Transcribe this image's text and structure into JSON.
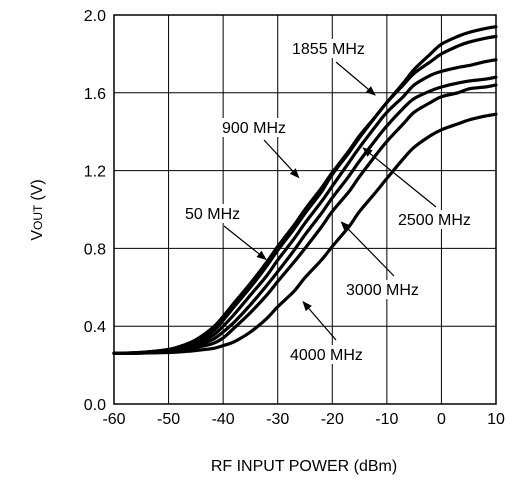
{
  "chart_data": {
    "type": "line",
    "title": "",
    "xlabel": "RF INPUT POWER (dBm)",
    "ylabel_main": "V",
    "ylabel_sub": "OUT",
    "ylabel_unit": "(V)",
    "xlim": [
      -60,
      10
    ],
    "ylim": [
      0,
      2.0
    ],
    "xticks": [
      -60,
      -50,
      -40,
      -30,
      -20,
      -10,
      0,
      10
    ],
    "xtick_labels": [
      "-60",
      "-50",
      "-40",
      "-30",
      "-20",
      "-10",
      "0",
      "10"
    ],
    "yticks": [
      0,
      0.4,
      0.8,
      1.2,
      1.6,
      2.0
    ],
    "ytick_labels": [
      "0.0",
      "0.4",
      "0.8",
      "1.2",
      "1.6",
      "2.0"
    ],
    "grid": true,
    "legend": "none",
    "series": [
      {
        "name": "50 MHz",
        "x": [
          -60,
          -55,
          -50,
          -47,
          -45,
          -42,
          -40,
          -38,
          -35,
          -32,
          -30,
          -27,
          -25,
          -22,
          -20,
          -17,
          -15,
          -12,
          -10,
          -7,
          -5,
          -2,
          0,
          3,
          5,
          8,
          10
        ],
        "y": [
          0.26,
          0.265,
          0.28,
          0.305,
          0.33,
          0.39,
          0.45,
          0.52,
          0.62,
          0.73,
          0.81,
          0.92,
          1.0,
          1.11,
          1.19,
          1.3,
          1.38,
          1.48,
          1.55,
          1.64,
          1.7,
          1.76,
          1.8,
          1.84,
          1.86,
          1.88,
          1.89
        ]
      },
      {
        "name": "900 MHz",
        "x": [
          -60,
          -55,
          -50,
          -47,
          -45,
          -42,
          -40,
          -38,
          -35,
          -32,
          -30,
          -27,
          -25,
          -22,
          -20,
          -17,
          -15,
          -12,
          -10,
          -7,
          -5,
          -2,
          0,
          3,
          5,
          8,
          10
        ],
        "y": [
          0.26,
          0.265,
          0.28,
          0.3,
          0.32,
          0.37,
          0.43,
          0.5,
          0.6,
          0.71,
          0.79,
          0.9,
          0.98,
          1.09,
          1.18,
          1.29,
          1.37,
          1.48,
          1.55,
          1.65,
          1.72,
          1.8,
          1.85,
          1.89,
          1.91,
          1.93,
          1.94
        ]
      },
      {
        "name": "1855 MHz",
        "x": [
          -60,
          -55,
          -50,
          -47,
          -45,
          -42,
          -40,
          -38,
          -35,
          -32,
          -30,
          -27,
          -25,
          -22,
          -20,
          -17,
          -15,
          -12,
          -10,
          -7,
          -5,
          -2,
          0,
          3,
          5,
          8,
          10
        ],
        "y": [
          0.26,
          0.265,
          0.275,
          0.29,
          0.31,
          0.35,
          0.4,
          0.46,
          0.56,
          0.66,
          0.74,
          0.85,
          0.93,
          1.04,
          1.12,
          1.24,
          1.32,
          1.43,
          1.5,
          1.58,
          1.64,
          1.69,
          1.71,
          1.73,
          1.74,
          1.76,
          1.77
        ]
      },
      {
        "name": "2500 MHz",
        "x": [
          -60,
          -55,
          -50,
          -47,
          -45,
          -42,
          -40,
          -38,
          -35,
          -32,
          -30,
          -27,
          -25,
          -22,
          -20,
          -17,
          -15,
          -12,
          -10,
          -7,
          -5,
          -2,
          0,
          3,
          5,
          8,
          10
        ],
        "y": [
          0.26,
          0.262,
          0.27,
          0.285,
          0.3,
          0.33,
          0.37,
          0.42,
          0.51,
          0.61,
          0.68,
          0.79,
          0.87,
          0.98,
          1.06,
          1.17,
          1.25,
          1.36,
          1.43,
          1.52,
          1.57,
          1.61,
          1.63,
          1.65,
          1.66,
          1.67,
          1.68
        ]
      },
      {
        "name": "3000 MHz",
        "x": [
          -60,
          -55,
          -50,
          -47,
          -45,
          -42,
          -40,
          -38,
          -35,
          -32,
          -30,
          -27,
          -25,
          -22,
          -20,
          -17,
          -15,
          -12,
          -10,
          -7,
          -5,
          -2,
          0,
          3,
          5,
          8,
          10
        ],
        "y": [
          0.26,
          0.262,
          0.268,
          0.28,
          0.29,
          0.31,
          0.34,
          0.39,
          0.47,
          0.56,
          0.63,
          0.73,
          0.8,
          0.91,
          0.99,
          1.09,
          1.17,
          1.28,
          1.35,
          1.44,
          1.5,
          1.55,
          1.58,
          1.6,
          1.62,
          1.63,
          1.64
        ]
      },
      {
        "name": "4000 MHz",
        "x": [
          -60,
          -55,
          -50,
          -47,
          -45,
          -42,
          -40,
          -38,
          -35,
          -32,
          -30,
          -27,
          -25,
          -22,
          -20,
          -17,
          -15,
          -12,
          -10,
          -7,
          -5,
          -2,
          0,
          3,
          5,
          8,
          10
        ],
        "y": [
          0.26,
          0.262,
          0.265,
          0.27,
          0.275,
          0.285,
          0.3,
          0.32,
          0.37,
          0.44,
          0.5,
          0.58,
          0.65,
          0.74,
          0.81,
          0.91,
          0.99,
          1.09,
          1.16,
          1.26,
          1.32,
          1.38,
          1.41,
          1.44,
          1.46,
          1.48,
          1.49
        ]
      }
    ],
    "annotations": [
      {
        "text": "1855 MHz",
        "point": [
          -12,
          1.585
        ]
      },
      {
        "text": "900 MHz",
        "point": [
          -26,
          1.16
        ]
      },
      {
        "text": "50 MHz",
        "point": [
          -32,
          0.74
        ]
      },
      {
        "text": "2500 MHz",
        "point": [
          -14.5,
          1.32
        ]
      },
      {
        "text": "3000 MHz",
        "point": [
          -18.5,
          0.94
        ]
      },
      {
        "text": "4000 MHz",
        "point": [
          -25.5,
          0.53
        ]
      }
    ]
  }
}
